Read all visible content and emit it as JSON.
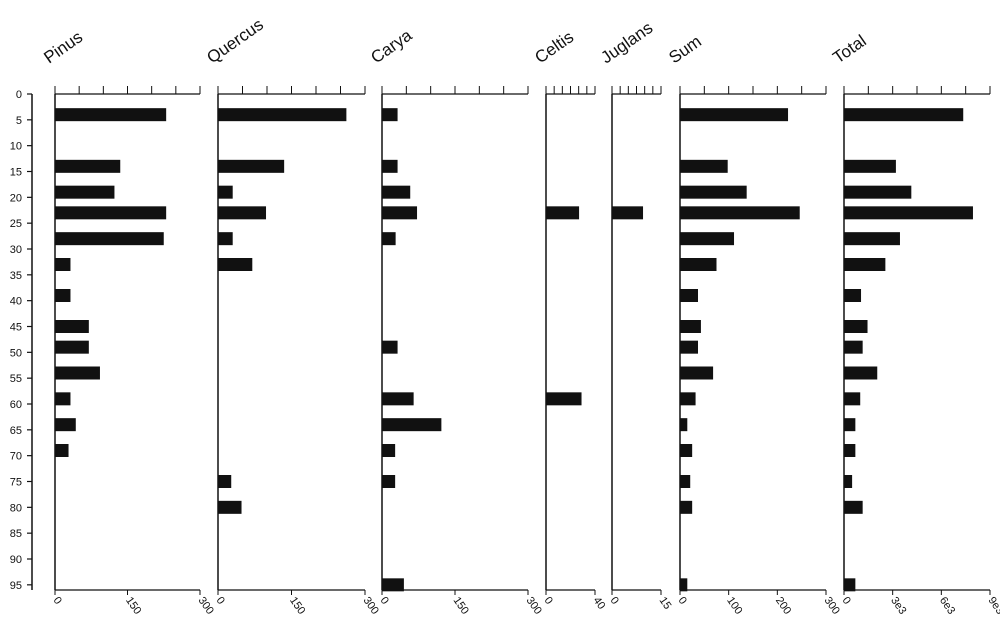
{
  "chart_data": {
    "type": "bar",
    "orientation": "horizontal",
    "y_axis": {
      "ticks": [
        0,
        5,
        10,
        15,
        20,
        25,
        30,
        35,
        40,
        45,
        50,
        55,
        60,
        65,
        70,
        75,
        80,
        85,
        90,
        95
      ],
      "ylim": [
        0,
        96
      ]
    },
    "bar_color": "#111111",
    "panels": [
      {
        "name": "Pinus",
        "xlim": [
          0,
          300
        ],
        "tick_labels": [
          "0",
          "150",
          "300"
        ],
        "bars": [
          {
            "depth": 4,
            "value": 230
          },
          {
            "depth": 14,
            "value": 135
          },
          {
            "depth": 19,
            "value": 123
          },
          {
            "depth": 23,
            "value": 230
          },
          {
            "depth": 28,
            "value": 225
          },
          {
            "depth": 33,
            "value": 32
          },
          {
            "depth": 39,
            "value": 32
          },
          {
            "depth": 45,
            "value": 70
          },
          {
            "depth": 49,
            "value": 70
          },
          {
            "depth": 54,
            "value": 93
          },
          {
            "depth": 59,
            "value": 32
          },
          {
            "depth": 64,
            "value": 43
          },
          {
            "depth": 69,
            "value": 28
          }
        ]
      },
      {
        "name": "Quercus",
        "xlim": [
          0,
          300
        ],
        "tick_labels": [
          "0",
          "150",
          "300"
        ],
        "bars": [
          {
            "depth": 4,
            "value": 262
          },
          {
            "depth": 14,
            "value": 135
          },
          {
            "depth": 19,
            "value": 30
          },
          {
            "depth": 23,
            "value": 98
          },
          {
            "depth": 28,
            "value": 30
          },
          {
            "depth": 33,
            "value": 70
          },
          {
            "depth": 75,
            "value": 27
          },
          {
            "depth": 80,
            "value": 48
          }
        ]
      },
      {
        "name": "Carya",
        "xlim": [
          0,
          300
        ],
        "tick_labels": [
          "0",
          "150",
          "300"
        ],
        "bars": [
          {
            "depth": 4,
            "value": 32
          },
          {
            "depth": 14,
            "value": 32
          },
          {
            "depth": 19,
            "value": 58
          },
          {
            "depth": 23,
            "value": 72
          },
          {
            "depth": 28,
            "value": 28
          },
          {
            "depth": 49,
            "value": 32
          },
          {
            "depth": 59,
            "value": 65
          },
          {
            "depth": 64,
            "value": 122
          },
          {
            "depth": 69,
            "value": 27
          },
          {
            "depth": 75,
            "value": 27
          },
          {
            "depth": 95,
            "value": 45
          }
        ]
      },
      {
        "name": "Celtis",
        "xlim": [
          0,
          40
        ],
        "tick_labels": [
          "0",
          "40"
        ],
        "bars": [
          {
            "depth": 23,
            "value": 27
          },
          {
            "depth": 59,
            "value": 29
          }
        ]
      },
      {
        "name": "Juglans",
        "xlim": [
          0,
          15
        ],
        "tick_labels": [
          "0",
          "15"
        ],
        "bars": [
          {
            "depth": 23,
            "value": 9.5
          }
        ]
      },
      {
        "name": "Sum",
        "xlim": [
          0,
          300
        ],
        "tick_labels": [
          "0",
          "100",
          "200",
          "300"
        ],
        "bars": [
          {
            "depth": 4,
            "value": 222
          },
          {
            "depth": 14,
            "value": 98
          },
          {
            "depth": 19,
            "value": 137
          },
          {
            "depth": 23,
            "value": 246
          },
          {
            "depth": 28,
            "value": 111
          },
          {
            "depth": 33,
            "value": 75
          },
          {
            "depth": 39,
            "value": 37
          },
          {
            "depth": 45,
            "value": 43
          },
          {
            "depth": 49,
            "value": 37
          },
          {
            "depth": 54,
            "value": 68
          },
          {
            "depth": 59,
            "value": 32
          },
          {
            "depth": 64,
            "value": 15
          },
          {
            "depth": 69,
            "value": 25
          },
          {
            "depth": 75,
            "value": 21
          },
          {
            "depth": 80,
            "value": 25
          },
          {
            "depth": 95,
            "value": 15
          }
        ]
      },
      {
        "name": "Total",
        "xlim": [
          0,
          9000
        ],
        "tick_labels": [
          "0",
          "3e3",
          "6e3",
          "9e3"
        ],
        "bars": [
          {
            "depth": 4,
            "value": 7350
          },
          {
            "depth": 14,
            "value": 3200
          },
          {
            "depth": 19,
            "value": 4150
          },
          {
            "depth": 23,
            "value": 7950
          },
          {
            "depth": 28,
            "value": 3450
          },
          {
            "depth": 33,
            "value": 2550
          },
          {
            "depth": 39,
            "value": 1050
          },
          {
            "depth": 45,
            "value": 1450
          },
          {
            "depth": 49,
            "value": 1150
          },
          {
            "depth": 54,
            "value": 2050
          },
          {
            "depth": 59,
            "value": 1000
          },
          {
            "depth": 64,
            "value": 700
          },
          {
            "depth": 69,
            "value": 700
          },
          {
            "depth": 75,
            "value": 500
          },
          {
            "depth": 80,
            "value": 1150
          },
          {
            "depth": 95,
            "value": 700
          }
        ]
      }
    ]
  }
}
